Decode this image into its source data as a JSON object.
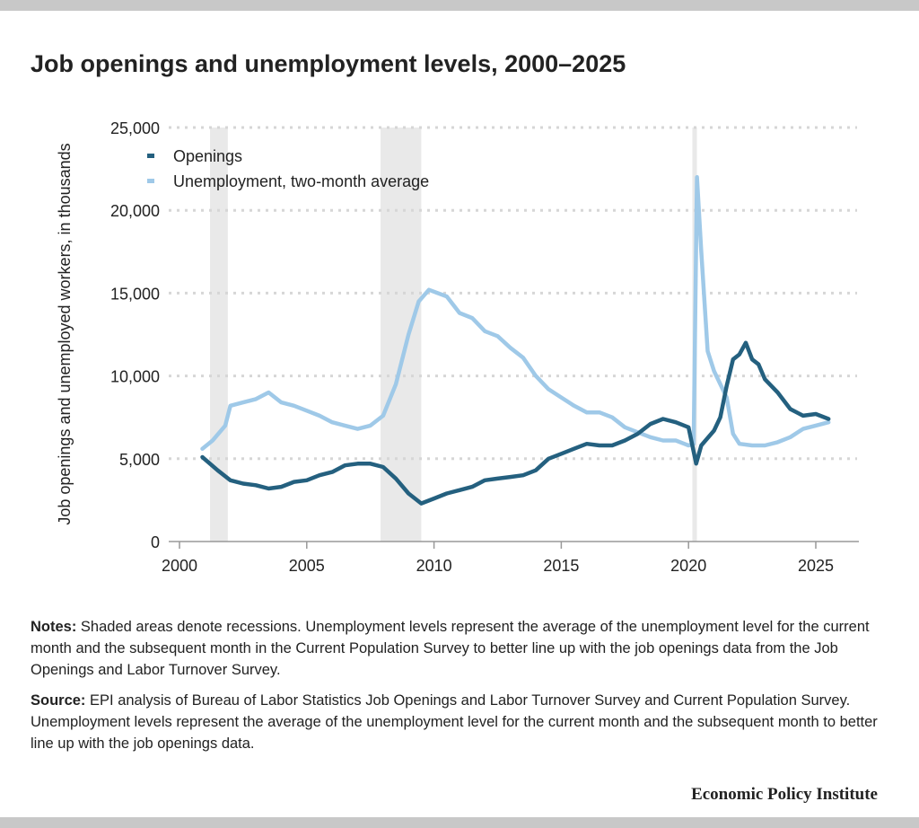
{
  "title": "Job openings and unemployment levels, 2000–2025",
  "notes": {
    "notes_label": "Notes:",
    "notes_text": " Shaded areas denote recessions. Unemployment levels represent the average of the unemployment level for the current month and the subsequent month in the Current Population Survey to better line up with the job openings data from the Job Openings and Labor Turnover Survey.",
    "source_label": "Source:",
    "source_text": " EPI analysis of Bureau of Labor Statistics Job Openings and Labor Turnover Survey and Current Population Survey. Unemployment levels represent the average of the unemployment level for the current month and the subsequent month to better line up with the job openings data."
  },
  "brand": "Economic Policy Institute",
  "colors": {
    "openings": "#24607f",
    "unemployment": "#9fc9e8",
    "recession": "#e9e9e9",
    "grid": "#d6d6d6"
  },
  "chart_data": {
    "type": "line",
    "title": "Job openings and unemployment levels, 2000–2025",
    "xlabel": "",
    "ylabel": "Job openings and unemployed workers, in thousands",
    "xlim": [
      2000,
      2026.5
    ],
    "ylim": [
      0,
      25000
    ],
    "x_ticks": [
      2000,
      2005,
      2010,
      2015,
      2020,
      2025
    ],
    "y_ticks": [
      0,
      5000,
      10000,
      15000,
      20000,
      25000
    ],
    "y_tick_labels": [
      "0",
      "5,000",
      "10,000",
      "15,000",
      "20,000",
      "25,000"
    ],
    "grid": "horizontal dotted",
    "legend_position": "top-left",
    "recessions": [
      [
        2001.2,
        2001.9
      ],
      [
        2007.9,
        2009.5
      ],
      [
        2020.15,
        2020.33
      ]
    ],
    "series": [
      {
        "name": "Openings",
        "points": [
          [
            2000.9,
            5100
          ],
          [
            2001.5,
            4300
          ],
          [
            2002,
            3700
          ],
          [
            2002.5,
            3500
          ],
          [
            2003,
            3400
          ],
          [
            2003.5,
            3200
          ],
          [
            2004,
            3300
          ],
          [
            2004.5,
            3600
          ],
          [
            2005,
            3700
          ],
          [
            2005.5,
            4000
          ],
          [
            2006,
            4200
          ],
          [
            2006.5,
            4600
          ],
          [
            2007,
            4700
          ],
          [
            2007.5,
            4700
          ],
          [
            2008,
            4500
          ],
          [
            2008.5,
            3800
          ],
          [
            2009,
            2900
          ],
          [
            2009.5,
            2300
          ],
          [
            2010,
            2600
          ],
          [
            2010.5,
            2900
          ],
          [
            2011,
            3100
          ],
          [
            2011.5,
            3300
          ],
          [
            2012,
            3700
          ],
          [
            2012.5,
            3800
          ],
          [
            2013,
            3900
          ],
          [
            2013.5,
            4000
          ],
          [
            2014,
            4300
          ],
          [
            2014.5,
            5000
          ],
          [
            2015,
            5300
          ],
          [
            2015.5,
            5600
          ],
          [
            2016,
            5900
          ],
          [
            2016.5,
            5800
          ],
          [
            2017,
            5800
          ],
          [
            2017.5,
            6100
          ],
          [
            2018,
            6500
          ],
          [
            2018.5,
            7100
          ],
          [
            2019,
            7400
          ],
          [
            2019.5,
            7200
          ],
          [
            2020,
            6900
          ],
          [
            2020.3,
            4700
          ],
          [
            2020.5,
            5800
          ],
          [
            2021,
            6700
          ],
          [
            2021.25,
            7500
          ],
          [
            2021.5,
            9400
          ],
          [
            2021.75,
            11000
          ],
          [
            2022,
            11300
          ],
          [
            2022.25,
            12000
          ],
          [
            2022.5,
            11000
          ],
          [
            2022.75,
            10700
          ],
          [
            2023,
            9800
          ],
          [
            2023.5,
            9000
          ],
          [
            2024,
            8000
          ],
          [
            2024.5,
            7600
          ],
          [
            2025,
            7700
          ],
          [
            2025.5,
            7400
          ]
        ]
      },
      {
        "name": "Unemployment, two-month average",
        "points": [
          [
            2000.9,
            5600
          ],
          [
            2001.3,
            6100
          ],
          [
            2001.8,
            7000
          ],
          [
            2002,
            8200
          ],
          [
            2002.5,
            8400
          ],
          [
            2003,
            8600
          ],
          [
            2003.5,
            9000
          ],
          [
            2004,
            8400
          ],
          [
            2004.5,
            8200
          ],
          [
            2005,
            7900
          ],
          [
            2005.5,
            7600
          ],
          [
            2006,
            7200
          ],
          [
            2006.5,
            7000
          ],
          [
            2007,
            6800
          ],
          [
            2007.5,
            7000
          ],
          [
            2008,
            7600
          ],
          [
            2008.5,
            9500
          ],
          [
            2009,
            12500
          ],
          [
            2009.4,
            14500
          ],
          [
            2009.8,
            15200
          ],
          [
            2010.5,
            14800
          ],
          [
            2011,
            13800
          ],
          [
            2011.5,
            13500
          ],
          [
            2012,
            12700
          ],
          [
            2012.5,
            12400
          ],
          [
            2013,
            11700
          ],
          [
            2013.5,
            11100
          ],
          [
            2014,
            10000
          ],
          [
            2014.5,
            9200
          ],
          [
            2015,
            8700
          ],
          [
            2015.5,
            8200
          ],
          [
            2016,
            7800
          ],
          [
            2016.5,
            7800
          ],
          [
            2017,
            7500
          ],
          [
            2017.5,
            6900
          ],
          [
            2018,
            6600
          ],
          [
            2018.5,
            6300
          ],
          [
            2019,
            6100
          ],
          [
            2019.5,
            6100
          ],
          [
            2020,
            5800
          ],
          [
            2020.2,
            5900
          ],
          [
            2020.33,
            22000
          ],
          [
            2020.5,
            17500
          ],
          [
            2020.75,
            11500
          ],
          [
            2021,
            10300
          ],
          [
            2021.5,
            8700
          ],
          [
            2021.75,
            6500
          ],
          [
            2022,
            5900
          ],
          [
            2022.5,
            5800
          ],
          [
            2023,
            5800
          ],
          [
            2023.5,
            6000
          ],
          [
            2024,
            6300
          ],
          [
            2024.5,
            6800
          ],
          [
            2025,
            7000
          ],
          [
            2025.5,
            7200
          ]
        ]
      }
    ]
  }
}
